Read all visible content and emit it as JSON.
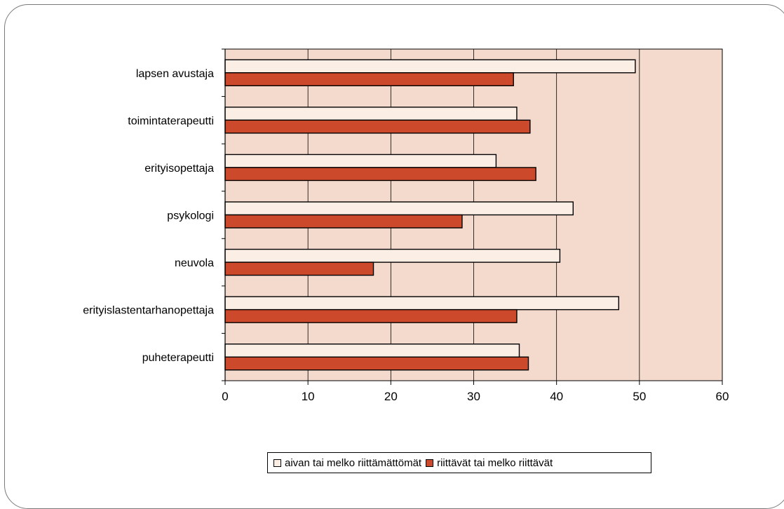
{
  "chart_data": {
    "type": "bar",
    "orientation": "horizontal",
    "categories": [
      "lapsen avustaja",
      "toimintaterapeutti",
      "erityisopettaja",
      "psykologi",
      "neuvola",
      "erityislastentarhanopettaja",
      "puheterapeutti"
    ],
    "series": [
      {
        "name": "aivan tai melko riittämättömät",
        "values": [
          49.5,
          35.2,
          32.7,
          42.0,
          40.4,
          47.5,
          35.5
        ],
        "color": "#fbeee4"
      },
      {
        "name": "riittävät tai melko riittävät",
        "values": [
          34.8,
          36.8,
          37.5,
          28.6,
          17.9,
          35.2,
          36.6
        ],
        "color": "#cc4a2b"
      }
    ],
    "xlim": [
      0,
      60
    ],
    "xticks": [
      "0",
      "10",
      "20",
      "30",
      "40",
      "50",
      "60"
    ],
    "grid": true,
    "legend_position": "bottom",
    "plot_background": "#f4d9cd"
  }
}
